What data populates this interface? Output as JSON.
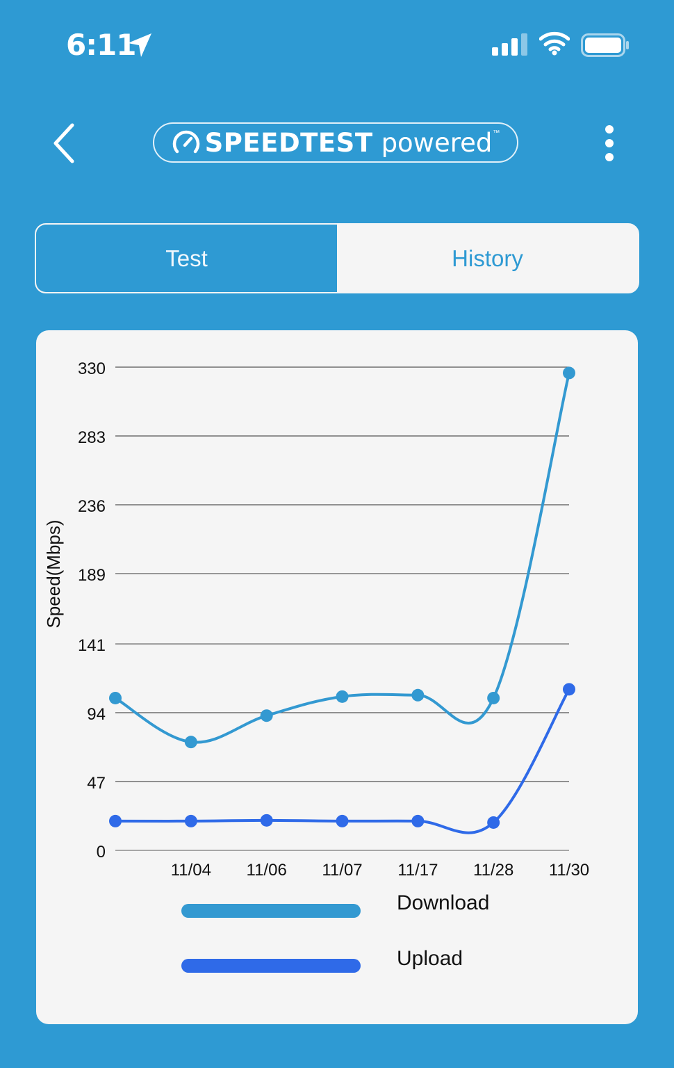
{
  "status_bar": {
    "time": "6:11",
    "icons": [
      "location-arrow-icon",
      "cellular-signal-icon",
      "wifi-icon",
      "battery-icon"
    ]
  },
  "header": {
    "back_icon": "chevron-left-icon",
    "brand_name": "SPEEDTEST",
    "brand_suffix": "powered",
    "brand_mark": "™",
    "more_icon": "vertical-ellipsis-icon"
  },
  "tabs": [
    {
      "label": "Test",
      "active": true
    },
    {
      "label": "History",
      "active": false
    }
  ],
  "colors": {
    "background": "#2e9ad3",
    "download": "#3399d1",
    "upload": "#2f6ae8",
    "card": "#f5f5f5"
  },
  "chart_data": {
    "type": "line",
    "ylabel": "Speed(Mbps)",
    "xlabel": "",
    "title": "",
    "yticks": [
      0,
      47,
      94,
      141,
      189,
      236,
      283,
      330
    ],
    "ylim": [
      0,
      330
    ],
    "categories": [
      "",
      "11/04",
      "11/06",
      "11/07",
      "11/17",
      "11/28",
      "11/30"
    ],
    "grid": true,
    "legend_position": "bottom",
    "series": [
      {
        "name": "Download",
        "color": "#3399d1",
        "values": [
          104,
          74,
          92,
          105,
          106,
          104,
          326
        ]
      },
      {
        "name": "Upload",
        "color": "#2f6ae8",
        "values": [
          20,
          20,
          20.5,
          20,
          20,
          19,
          110
        ]
      }
    ]
  }
}
